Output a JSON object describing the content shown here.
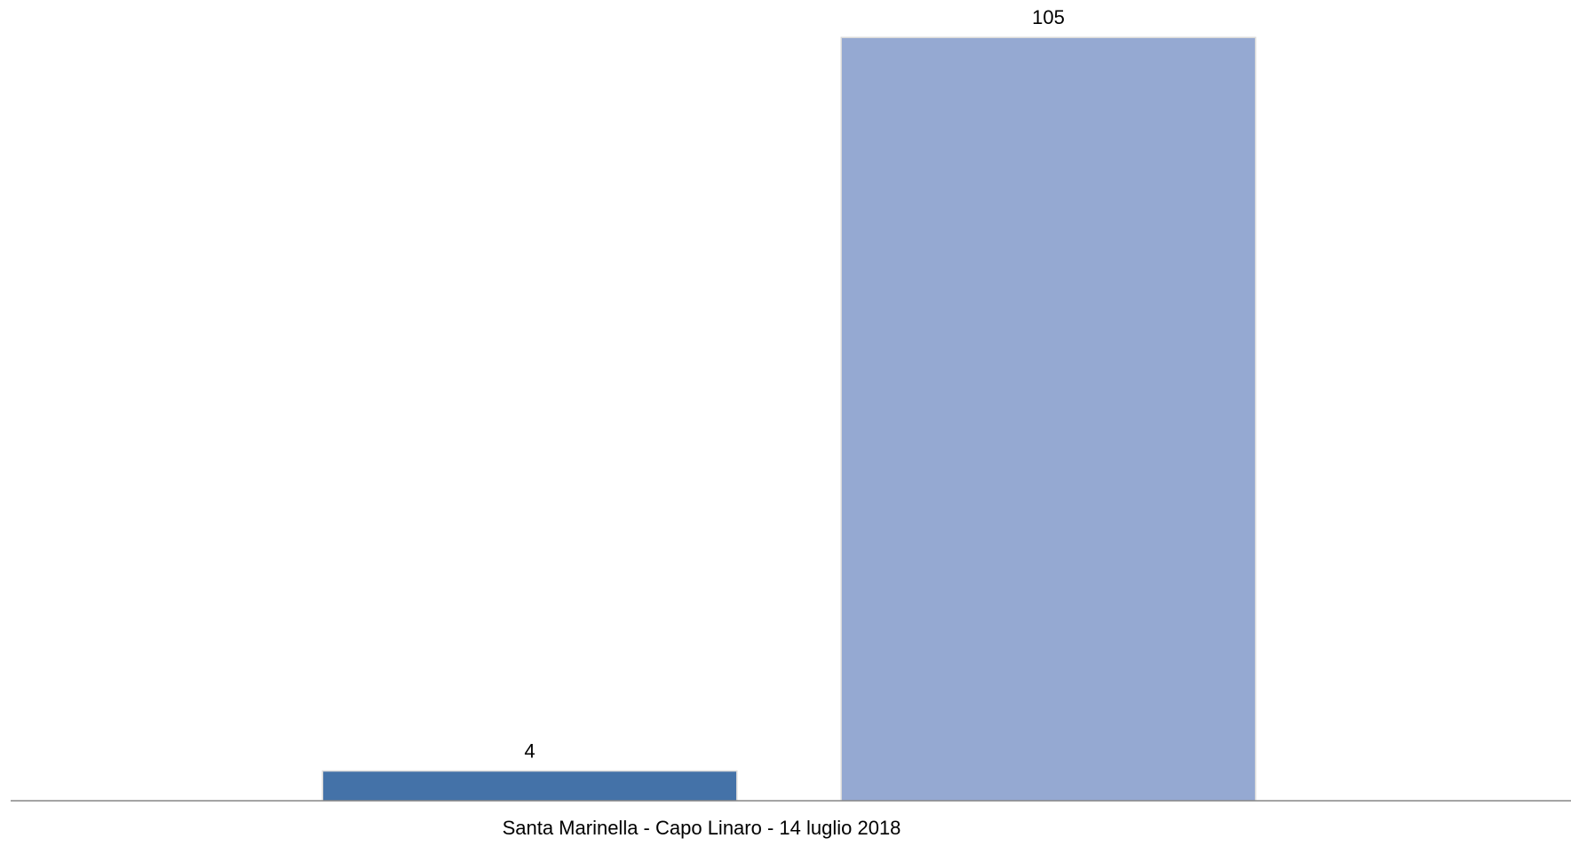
{
  "chart_data": {
    "type": "bar",
    "categories": [
      "Santa Marinella - Capo Linaro - 14 luglio 2018"
    ],
    "series": [
      {
        "values": [
          4
        ],
        "color": "#4472A8"
      },
      {
        "values": [
          105
        ],
        "color": "#95A9D2"
      }
    ],
    "data_labels": [
      "4",
      "105"
    ],
    "xlabel": "",
    "ylabel": "",
    "ylim": [
      0,
      105
    ],
    "grid": false,
    "legend": "none",
    "axis_color": "#868686"
  }
}
